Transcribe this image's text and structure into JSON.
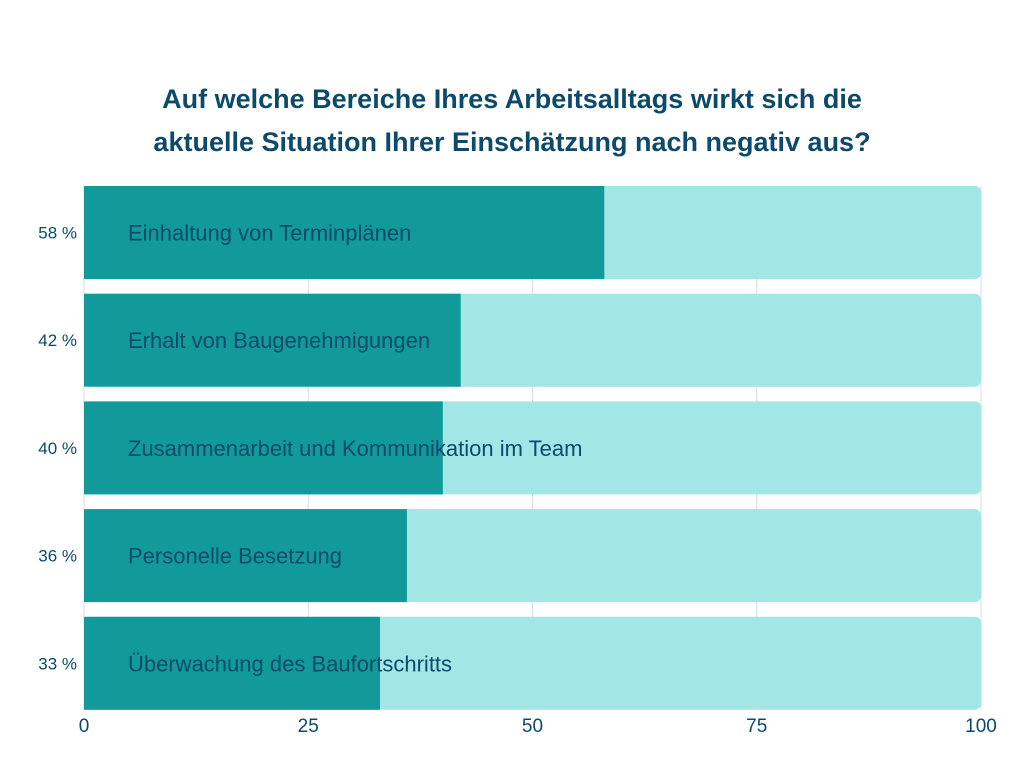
{
  "chart_data": {
    "type": "bar",
    "orientation": "horizontal",
    "title_lines": [
      "Auf welche Bereiche Ihres Arbeitsalltags wirkt sich die",
      "aktuelle Situation Ihrer Einschätzung nach negativ aus?"
    ],
    "categories": [
      "Einhaltung von Terminplänen",
      "Erhalt von Baugenehmigungen",
      "Zusammenarbeit und Kommunikation im Team",
      "Personelle Besetzung",
      "Überwachung des Baufortschritts"
    ],
    "values": [
      58,
      42,
      40,
      36,
      33
    ],
    "value_labels": [
      "58 %",
      "42 %",
      "40 %",
      "36 %",
      "33 %"
    ],
    "background_value": 100,
    "xlim": [
      0,
      100
    ],
    "xticks": [
      0,
      25,
      50,
      75,
      100
    ],
    "xlabel": "",
    "ylabel": "",
    "grid": true,
    "legend": "none",
    "colors": {
      "bar": "#119a99",
      "track": "#a3e6e6",
      "text": "#0b4a6b",
      "grid": "#d5dde6"
    }
  }
}
